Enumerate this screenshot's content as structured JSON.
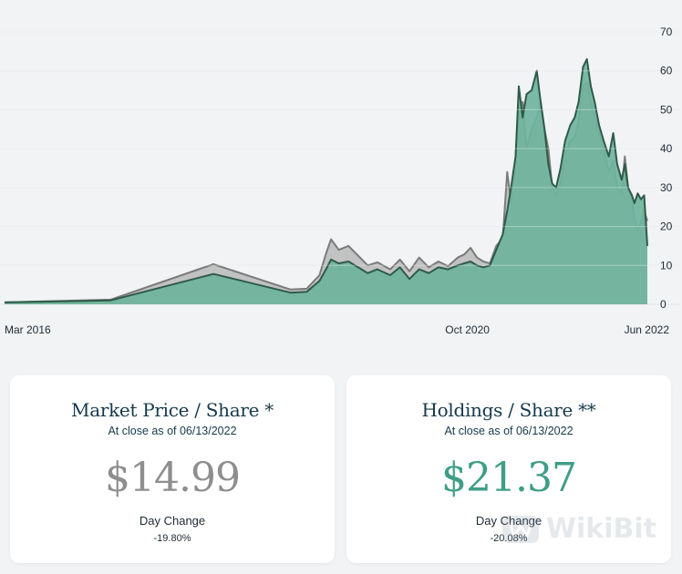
{
  "chart_data": {
    "type": "area",
    "y_ticks": [
      0,
      10,
      20,
      30,
      40,
      50,
      60,
      70
    ],
    "ylim": [
      0,
      70
    ],
    "x_tick_labels": [
      "Mar 2016",
      "Oct 2020",
      "Jun 2022"
    ],
    "grid": true,
    "series": [
      {
        "values": [
          [
            0.0,
            0.5
          ],
          [
            0.165,
            1.2
          ],
          [
            0.325,
            10.3
          ],
          [
            0.445,
            3.8
          ],
          [
            0.47,
            4.0
          ],
          [
            0.49,
            7.5
          ],
          [
            0.5,
            13.0
          ],
          [
            0.508,
            16.7
          ],
          [
            0.52,
            14.0
          ],
          [
            0.535,
            15.0
          ],
          [
            0.55,
            12.5
          ],
          [
            0.565,
            10.0
          ],
          [
            0.58,
            10.8
          ],
          [
            0.6,
            9.0
          ],
          [
            0.615,
            11.5
          ],
          [
            0.63,
            8.5
          ],
          [
            0.645,
            12.0
          ],
          [
            0.66,
            9.5
          ],
          [
            0.675,
            11.0
          ],
          [
            0.69,
            9.8
          ],
          [
            0.705,
            12.0
          ],
          [
            0.715,
            12.8
          ],
          [
            0.725,
            14.5
          ],
          [
            0.735,
            12.0
          ],
          [
            0.745,
            11.0
          ],
          [
            0.755,
            10.5
          ],
          [
            0.765,
            15.0
          ],
          [
            0.775,
            17.0
          ],
          [
            0.782,
            34.0
          ],
          [
            0.788,
            26.0
          ],
          [
            0.795,
            38.0
          ],
          [
            0.8,
            50.0
          ],
          [
            0.806,
            52.0
          ],
          [
            0.812,
            40.0
          ],
          [
            0.82,
            45.0
          ],
          [
            0.828,
            48.0
          ],
          [
            0.834,
            52.0
          ],
          [
            0.84,
            45.0
          ],
          [
            0.846,
            40.0
          ],
          [
            0.852,
            30.0
          ],
          [
            0.858,
            28.0
          ],
          [
            0.865,
            31.0
          ],
          [
            0.872,
            38.0
          ],
          [
            0.88,
            42.0
          ],
          [
            0.887,
            43.0
          ],
          [
            0.893,
            47.0
          ],
          [
            0.9,
            56.0
          ],
          [
            0.906,
            57.0
          ],
          [
            0.912,
            52.0
          ],
          [
            0.918,
            48.0
          ],
          [
            0.925,
            44.0
          ],
          [
            0.932,
            40.0
          ],
          [
            0.94,
            34.0
          ],
          [
            0.947,
            37.0
          ],
          [
            0.953,
            30.0
          ],
          [
            0.96,
            28.5
          ],
          [
            0.965,
            38.0
          ],
          [
            0.97,
            30.0
          ],
          [
            0.976,
            27.0
          ],
          [
            0.98,
            22.0
          ],
          [
            0.985,
            19.0
          ],
          [
            0.99,
            21.0
          ],
          [
            0.995,
            24.0
          ],
          [
            1.0,
            21.4
          ]
        ]
      },
      {
        "values": [
          [
            0.0,
            0.5
          ],
          [
            0.165,
            1.0
          ],
          [
            0.325,
            7.8
          ],
          [
            0.445,
            3.0
          ],
          [
            0.47,
            3.2
          ],
          [
            0.49,
            6.0
          ],
          [
            0.5,
            9.0
          ],
          [
            0.508,
            11.5
          ],
          [
            0.52,
            10.5
          ],
          [
            0.535,
            11.0
          ],
          [
            0.55,
            9.5
          ],
          [
            0.565,
            8.0
          ],
          [
            0.58,
            9.0
          ],
          [
            0.6,
            7.5
          ],
          [
            0.615,
            9.5
          ],
          [
            0.63,
            6.5
          ],
          [
            0.645,
            9.0
          ],
          [
            0.66,
            8.0
          ],
          [
            0.675,
            9.5
          ],
          [
            0.69,
            9.0
          ],
          [
            0.705,
            10.0
          ],
          [
            0.715,
            10.5
          ],
          [
            0.725,
            11.0
          ],
          [
            0.735,
            10.0
          ],
          [
            0.745,
            9.5
          ],
          [
            0.755,
            10.0
          ],
          [
            0.765,
            14.0
          ],
          [
            0.775,
            18.0
          ],
          [
            0.782,
            24.0
          ],
          [
            0.788,
            30.0
          ],
          [
            0.795,
            38.0
          ],
          [
            0.8,
            56.0
          ],
          [
            0.806,
            48.0
          ],
          [
            0.812,
            54.0
          ],
          [
            0.82,
            55.0
          ],
          [
            0.828,
            60.0
          ],
          [
            0.834,
            52.0
          ],
          [
            0.84,
            45.0
          ],
          [
            0.846,
            36.0
          ],
          [
            0.852,
            31.0
          ],
          [
            0.858,
            30.0
          ],
          [
            0.865,
            35.0
          ],
          [
            0.872,
            42.0
          ],
          [
            0.88,
            46.0
          ],
          [
            0.887,
            48.0
          ],
          [
            0.893,
            52.0
          ],
          [
            0.9,
            61.0
          ],
          [
            0.906,
            63.0
          ],
          [
            0.912,
            56.0
          ],
          [
            0.918,
            52.0
          ],
          [
            0.925,
            46.0
          ],
          [
            0.932,
            42.0
          ],
          [
            0.94,
            38.0
          ],
          [
            0.947,
            44.0
          ],
          [
            0.953,
            36.0
          ],
          [
            0.96,
            32.0
          ],
          [
            0.965,
            36.0
          ],
          [
            0.97,
            30.0
          ],
          [
            0.976,
            28.0
          ],
          [
            0.98,
            26.0
          ],
          [
            0.985,
            28.5
          ],
          [
            0.99,
            27.0
          ],
          [
            0.995,
            28.0
          ],
          [
            1.0,
            15.0
          ]
        ]
      }
    ]
  },
  "colors": {
    "area_green": "#6fb49d",
    "line_green": "#2f5a48",
    "area_gray": "#b9b9b9",
    "line_gray": "#7a7a7a",
    "price_gray": "#8e8e8e",
    "price_green": "#3e9e86",
    "title_navy": "#16394a"
  },
  "cards": {
    "market": {
      "title": "Market Price / Share *",
      "subtitle": "At close as of 06/13/2022",
      "price": "$14.99",
      "change_label": "Day Change",
      "change_value": "-19.80%"
    },
    "holdings": {
      "title": "Holdings / Share **",
      "subtitle": "At close as of 06/13/2022",
      "price": "$21.37",
      "change_label": "Day Change",
      "change_value": "-20.08%"
    }
  },
  "watermark": {
    "text": "WikiBit",
    "icon": "wikibit-logo-icon"
  }
}
